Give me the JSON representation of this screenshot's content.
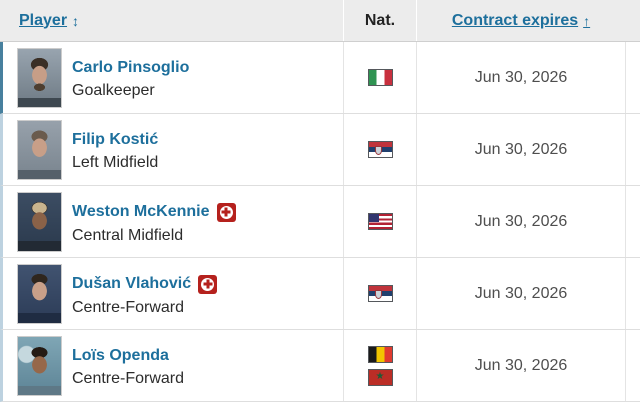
{
  "table": {
    "columns": [
      {
        "label": "Player",
        "sort_indicator": "↕",
        "sortable": true
      },
      {
        "label": "Nat.",
        "sortable": false
      },
      {
        "label": "Contract expires",
        "sort_indicator": "↑",
        "sortable": true
      }
    ],
    "rows": [
      {
        "name": "Carlo Pinsoglio",
        "position": "Goalkeeper",
        "nationalities": [
          "Italy"
        ],
        "contract_expires": "Jun 30, 2026",
        "injured": false
      },
      {
        "name": "Filip Kostić",
        "position": "Left Midfield",
        "nationalities": [
          "Serbia"
        ],
        "contract_expires": "Jun 30, 2026",
        "injured": false
      },
      {
        "name": "Weston McKennie",
        "position": "Central Midfield",
        "nationalities": [
          "United States"
        ],
        "contract_expires": "Jun 30, 2026",
        "injured": true
      },
      {
        "name": "Dušan Vlahović",
        "position": "Centre-Forward",
        "nationalities": [
          "Serbia"
        ],
        "contract_expires": "Jun 30, 2026",
        "injured": true
      },
      {
        "name": "Loïs Openda",
        "position": "Centre-Forward",
        "nationalities": [
          "Belgium",
          "Morocco"
        ],
        "contract_expires": "Jun 30, 2026",
        "injured": false
      }
    ]
  },
  "icons": {
    "sort_both": "↕",
    "sort_asc": "↑",
    "morocco_star": "★"
  },
  "colors": {
    "link_blue": "#1d6f9c",
    "injury_red": "#b5211d",
    "header_bg": "#ececec",
    "date_text": "#4e4e4e",
    "row_stripe_active": "#47809e",
    "row_stripe": "#bdd2e0"
  }
}
